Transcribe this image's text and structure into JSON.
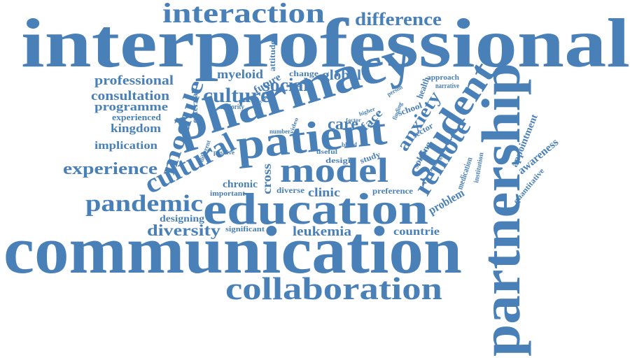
{
  "words": [
    "interprofessional",
    "interaction",
    "difference",
    "communication",
    "collaboration",
    "education",
    "partnership",
    "pharmacy",
    "patient",
    "model",
    "student",
    "remote",
    "anxiety",
    "cultural",
    "module",
    "culture",
    "social",
    "global",
    "myeloid",
    "future",
    "attitude",
    "change",
    "professional",
    "consultation",
    "programme",
    "experienced",
    "kingdom",
    "implication",
    "experience",
    "pandemic",
    "designing",
    "diversity",
    "significant",
    "leukemia",
    "countrie",
    "clinic",
    "diverse",
    "preference",
    "chronic",
    "important",
    "cross",
    "design",
    "study",
    "external",
    "majority",
    "number",
    "positive",
    "different",
    "care",
    "face",
    "sector",
    "school",
    "solving",
    "medication",
    "institution",
    "appointment",
    "awareness",
    "quantitative",
    "problem",
    "health",
    "approach",
    "narrative",
    "useful",
    "blood",
    "finding",
    "training",
    "video",
    "person",
    "group",
    "higher",
    "factor"
  ]
}
